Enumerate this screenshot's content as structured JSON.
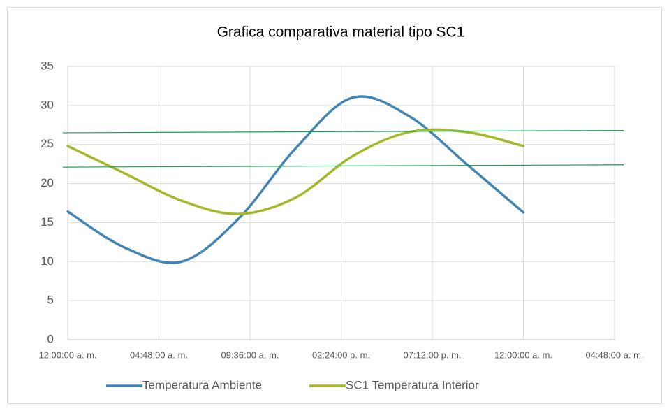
{
  "chart_data": {
    "type": "line",
    "title": "Grafica comparativa material tipo SC1",
    "x": [
      0,
      3,
      6,
      9,
      12,
      15,
      18,
      21,
      24
    ],
    "series": [
      {
        "name": "Temperatura Ambiente",
        "color": "#4285b4",
        "values": [
          16.4,
          11.8,
          10.0,
          15.5,
          24.5,
          31.0,
          28.6,
          22.5,
          16.3
        ]
      },
      {
        "name": "SC1 Temperatura Interior",
        "color": "#a6b828",
        "values": [
          24.8,
          21.3,
          17.8,
          16.1,
          18.2,
          23.5,
          26.6,
          26.6,
          24.8
        ]
      }
    ],
    "reference_lines": [
      {
        "color": "#1f9a4f",
        "values": [
          26.5,
          26.8
        ]
      },
      {
        "color": "#1f9a4f",
        "values": [
          22.1,
          22.4
        ]
      }
    ],
    "xlim": [
      0,
      28.8
    ],
    "xticks": [
      {
        "value": 0,
        "label": "12:00:00 a. m."
      },
      {
        "value": 4.8,
        "label": "04:48:00 a. m."
      },
      {
        "value": 9.6,
        "label": "09:36:00 a. m."
      },
      {
        "value": 14.4,
        "label": "02:24:00 p. m."
      },
      {
        "value": 19.2,
        "label": "07:12:00 p. m."
      },
      {
        "value": 24,
        "label": "12:00:00 a. m."
      },
      {
        "value": 28.8,
        "label": "04:48:00 a. m."
      }
    ],
    "ylim": [
      0,
      35
    ],
    "yticks": [
      0,
      5,
      10,
      15,
      20,
      25,
      30,
      35
    ],
    "grid": true,
    "legend": "bottom"
  }
}
